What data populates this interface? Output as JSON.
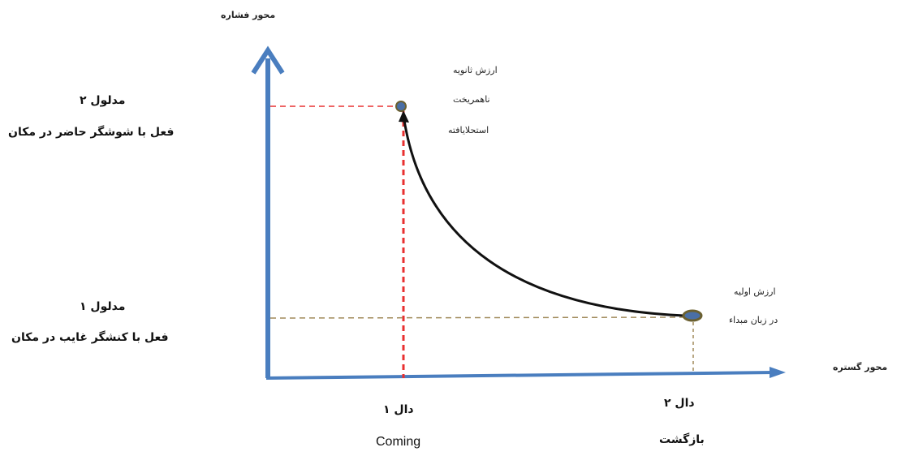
{
  "axes": {
    "y_label": "محور فشاره",
    "x_label": "محور گستره"
  },
  "left_labels": {
    "signified_2_title": "مدلول ۲",
    "signified_2_desc": "فعل با شوشگر حاضر در مکان",
    "signified_1_title": "مدلول ۱",
    "signified_1_desc": "فعل با کنشگر غایب در مکان"
  },
  "top_note": {
    "line1": "ارزش ثانویه",
    "line2": "ناهمریخت",
    "line3": "استحلایافته"
  },
  "right_note": {
    "line1": "ارزش اولیه",
    "line2": "در زبان مبداء"
  },
  "bottom_labels": {
    "signifier_1": "دال ۱",
    "signifier_1_gloss": "Coming",
    "signifier_2": "دال ۲",
    "signifier_2_gloss": "بازگشت"
  },
  "colors": {
    "axis": "#4a7ebf",
    "red_guide": "#e83030",
    "olive_guide": "#a08a5a",
    "curve": "#111111",
    "point_fill": "#4a6fa5",
    "point_stroke": "#6b6030"
  }
}
